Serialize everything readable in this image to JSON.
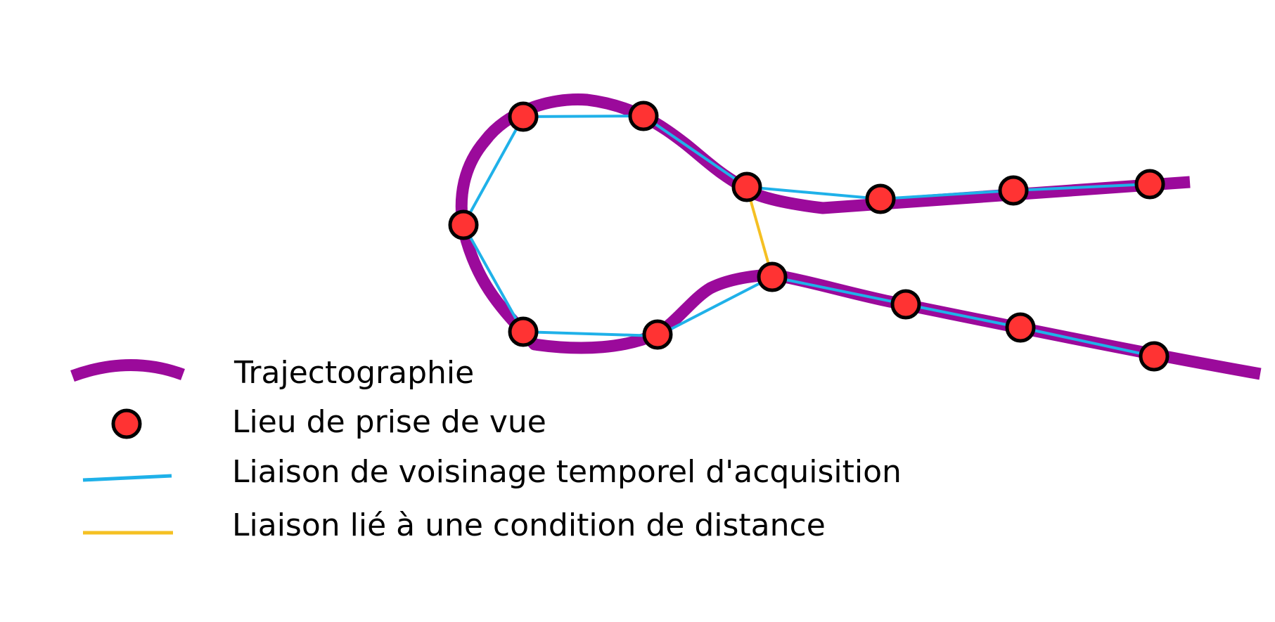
{
  "colors": {
    "trajectory": "#9b0a9b",
    "shot_point_fill": "#ff3333",
    "shot_point_stroke": "#000000",
    "temporal_link": "#1fb1e9",
    "distance_link": "#f5c023",
    "text": "#000000",
    "background": "#ffffff"
  },
  "icons": {
    "trajectory": "curved-thick-line",
    "shot_point": "red-circle-black-outline",
    "temporal_link": "thin-blue-line",
    "distance_link": "thin-yellow-line"
  },
  "legend": {
    "trajectory_label": "Trajectographie",
    "shot_point_label": "Lieu de prise de vue",
    "temporal_link_label": "Liaison de voisinage temporel d'acquisition",
    "distance_link_label": "Liaison lié à une condition de distance"
  }
}
